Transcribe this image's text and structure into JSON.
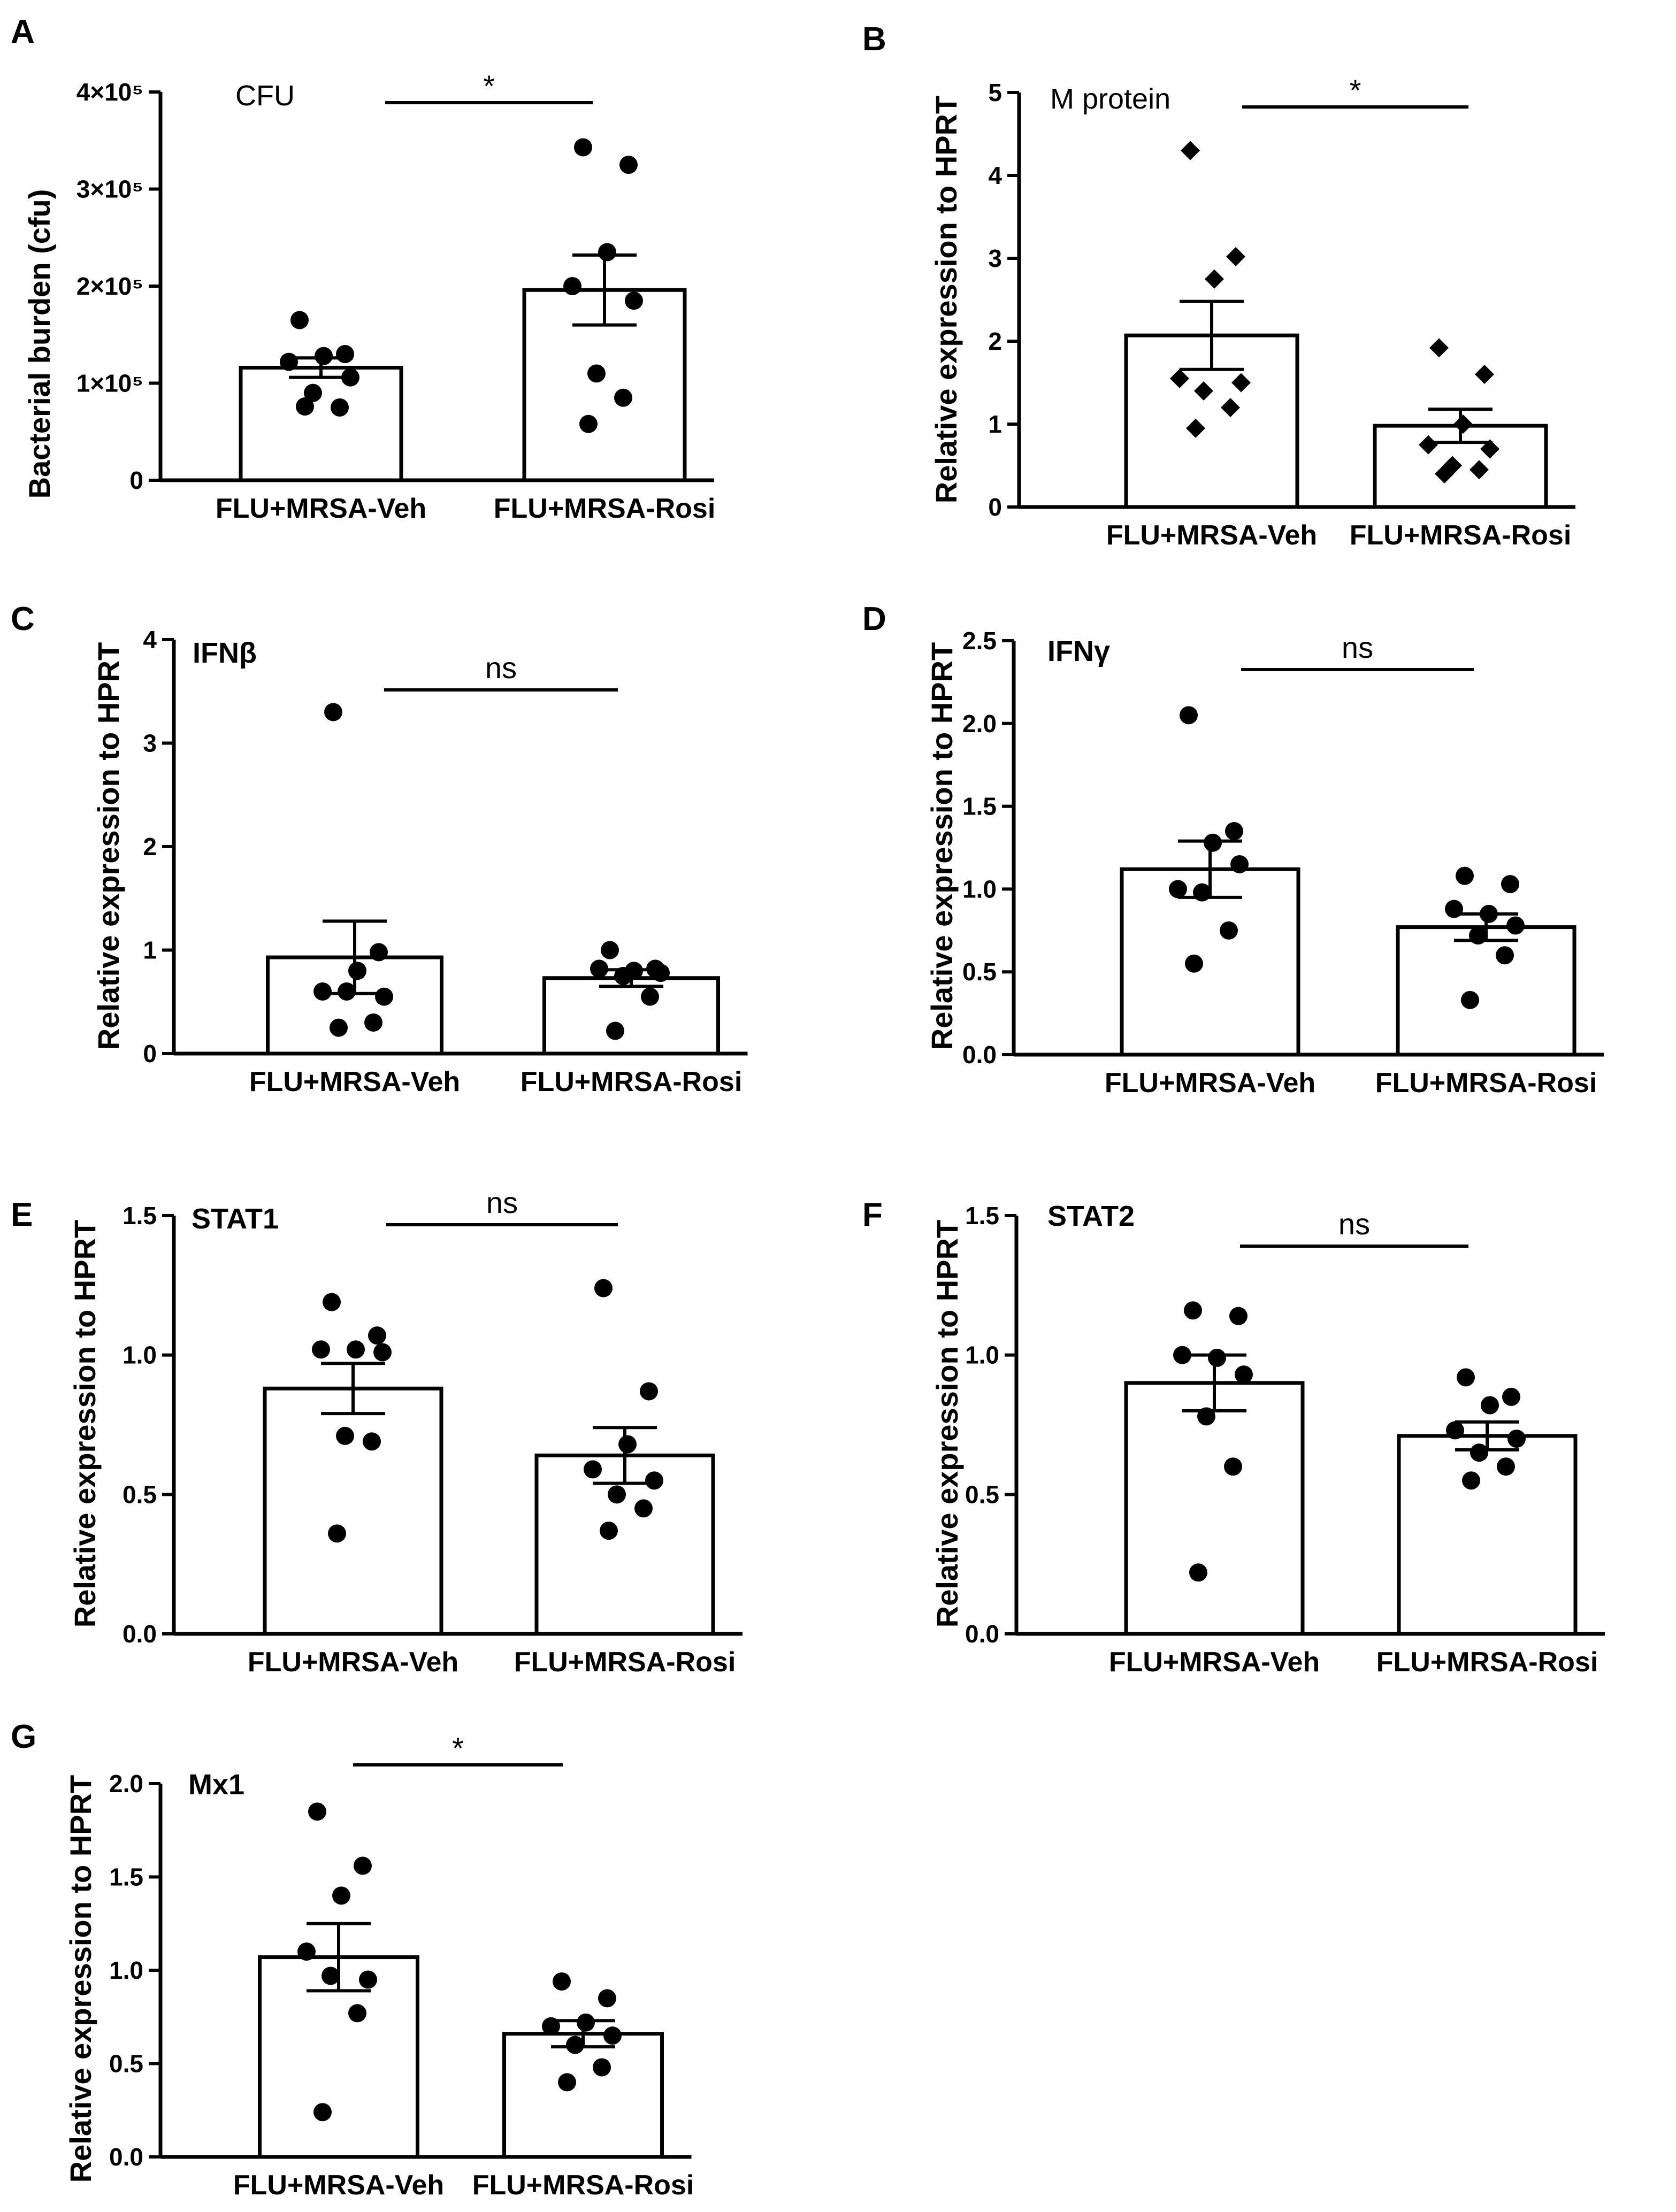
{
  "figure": {
    "groups": [
      "FLU+MRSA-Veh",
      "FLU+MRSA-Rosi"
    ],
    "y_label_default": "Relative expression to HPRT"
  },
  "chart_data": [
    {
      "panel": "A",
      "type": "bar",
      "title": "CFU",
      "title_bold": false,
      "ylabel": "Bacterial burden (cfu)",
      "ylim": [
        0,
        400000
      ],
      "yticks": [
        0,
        100000,
        200000,
        300000,
        400000
      ],
      "ytick_labels": [
        "0",
        "1×10⁵",
        "2×10⁵",
        "3×10⁵",
        "4×10⁵"
      ],
      "categories": [
        "FLU+MRSA-Veh",
        "FLU+MRSA-Rosi"
      ],
      "values": [
        116000,
        196000
      ],
      "sem": [
        10000,
        36000
      ],
      "marker": "circle",
      "points": [
        [
          165000,
          130000,
          128000,
          122000,
          106000,
          90000,
          75000,
          76000
        ],
        [
          343000,
          325000,
          235000,
          200000,
          185000,
          110000,
          85000,
          58000
        ]
      ],
      "significance": "*"
    },
    {
      "panel": "B",
      "type": "bar",
      "title": "M protein",
      "title_bold": false,
      "ylabel": "Relative expression to HPRT",
      "ylim": [
        0,
        5
      ],
      "yticks": [
        0,
        1,
        2,
        3,
        4,
        5
      ],
      "ytick_labels": [
        "0",
        "1",
        "2",
        "3",
        "4",
        "5"
      ],
      "categories": [
        "FLU+MRSA-Veh",
        "FLU+MRSA-Rosi"
      ],
      "values": [
        2.07,
        0.98
      ],
      "sem": [
        0.41,
        0.2
      ],
      "marker": "diamond",
      "points": [
        [
          4.3,
          3.02,
          2.75,
          1.55,
          1.5,
          1.4,
          1.2,
          0.95
        ],
        [
          1.92,
          1.6,
          1.0,
          0.75,
          0.7,
          0.5,
          0.45,
          0.4
        ]
      ],
      "significance": "*"
    },
    {
      "panel": "C",
      "type": "bar",
      "title": "IFNβ",
      "title_bold": true,
      "ylabel": "Relative expression to HPRT",
      "ylim": [
        0,
        4
      ],
      "yticks": [
        0,
        1,
        2,
        3,
        4
      ],
      "ytick_labels": [
        "0",
        "1",
        "2",
        "3",
        "4"
      ],
      "categories": [
        "FLU+MRSA-Veh",
        "FLU+MRSA-Rosi"
      ],
      "values": [
        0.93,
        0.73
      ],
      "sem": [
        0.35,
        0.08
      ],
      "marker": "circle",
      "points": [
        [
          3.3,
          0.98,
          0.8,
          0.6,
          0.55,
          0.6,
          0.3,
          0.25
        ],
        [
          1.0,
          0.82,
          0.8,
          0.82,
          0.78,
          0.75,
          0.55,
          0.22
        ]
      ],
      "significance": "ns"
    },
    {
      "panel": "D",
      "type": "bar",
      "title": "IFNγ",
      "title_bold": true,
      "ylabel": "Relative expression to HPRT",
      "ylim": [
        0,
        2.5
      ],
      "yticks": [
        0,
        0.5,
        1.0,
        1.5,
        2.0,
        2.5
      ],
      "ytick_labels": [
        "0.0",
        "0.5",
        "1.0",
        "1.5",
        "2.0",
        "2.5"
      ],
      "categories": [
        "FLU+MRSA-Veh",
        "FLU+MRSA-Rosi"
      ],
      "values": [
        1.12,
        0.77
      ],
      "sem": [
        0.17,
        0.08
      ],
      "marker": "circle",
      "points": [
        [
          2.05,
          1.35,
          1.28,
          1.0,
          1.15,
          0.98,
          0.75,
          0.55
        ],
        [
          1.08,
          1.03,
          0.85,
          0.88,
          0.78,
          0.72,
          0.6,
          0.33
        ]
      ],
      "significance": "ns"
    },
    {
      "panel": "E",
      "type": "bar",
      "title": "STAT1",
      "title_bold": true,
      "ylabel": "Relative expression to HPRT",
      "ylim": [
        0,
        1.5
      ],
      "yticks": [
        0,
        0.5,
        1.0,
        1.5
      ],
      "ytick_labels": [
        "0.0",
        "0.5",
        "1.0",
        "1.5"
      ],
      "categories": [
        "FLU+MRSA-Veh",
        "FLU+MRSA-Rosi"
      ],
      "values": [
        0.88,
        0.64
      ],
      "sem": [
        0.09,
        0.1
      ],
      "marker": "circle",
      "points": [
        [
          1.19,
          1.07,
          1.02,
          1.02,
          1.01,
          0.71,
          0.69,
          0.36
        ],
        [
          1.24,
          0.87,
          0.68,
          0.59,
          0.55,
          0.5,
          0.45,
          0.37
        ]
      ],
      "significance": "ns"
    },
    {
      "panel": "F",
      "type": "bar",
      "title": "STAT2",
      "title_bold": true,
      "ylabel": "Relative expression to HPRT",
      "ylim": [
        0,
        1.5
      ],
      "yticks": [
        0,
        0.5,
        1.0,
        1.5
      ],
      "ytick_labels": [
        "0.0",
        "0.5",
        "1.0",
        "1.5"
      ],
      "categories": [
        "FLU+MRSA-Veh",
        "FLU+MRSA-Rosi"
      ],
      "values": [
        0.9,
        0.71
      ],
      "sem": [
        0.1,
        0.05
      ],
      "marker": "circle",
      "points": [
        [
          1.16,
          1.14,
          0.99,
          1.0,
          0.93,
          0.78,
          0.6,
          0.22
        ],
        [
          0.92,
          0.85,
          0.82,
          0.73,
          0.7,
          0.65,
          0.6,
          0.55
        ]
      ],
      "significance": "ns"
    },
    {
      "panel": "G",
      "type": "bar",
      "title": "Mx1",
      "title_bold": true,
      "ylabel": "Relative expression to HPRT",
      "ylim": [
        0,
        2.0
      ],
      "yticks": [
        0,
        0.5,
        1.0,
        1.5,
        2.0
      ],
      "ytick_labels": [
        "0.0",
        "0.5",
        "1.0",
        "1.5",
        "2.0"
      ],
      "categories": [
        "FLU+MRSA-Veh",
        "FLU+MRSA-Rosi"
      ],
      "values": [
        1.07,
        0.66
      ],
      "sem": [
        0.18,
        0.07
      ],
      "marker": "circle",
      "points": [
        [
          1.85,
          1.56,
          1.4,
          1.1,
          0.95,
          0.97,
          0.77,
          0.24
        ],
        [
          0.94,
          0.85,
          0.72,
          0.7,
          0.65,
          0.6,
          0.48,
          0.4
        ]
      ],
      "significance": "*"
    }
  ]
}
